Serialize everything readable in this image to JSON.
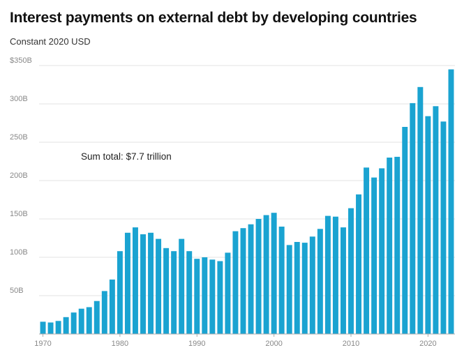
{
  "chart_data": {
    "type": "bar",
    "title": "Interest payments on external debt by developing countries",
    "subtitle": "Constant 2020 USD",
    "annotation": "Sum total: $7.7 trillion",
    "color": "#1aa3d1",
    "grid": true,
    "ylim": [
      0,
      350
    ],
    "y_ticks": [
      {
        "value": 50,
        "label": "50B"
      },
      {
        "value": 100,
        "label": "100B"
      },
      {
        "value": 150,
        "label": "150B"
      },
      {
        "value": 200,
        "label": "200B"
      },
      {
        "value": 250,
        "label": "250B"
      },
      {
        "value": 300,
        "label": "300B"
      },
      {
        "value": 350,
        "label": "$350B"
      }
    ],
    "x_ticks": [
      "1970",
      "1980",
      "1990",
      "2000",
      "2010",
      "2020"
    ],
    "categories": [
      "1970",
      "1971",
      "1972",
      "1973",
      "1974",
      "1975",
      "1976",
      "1977",
      "1978",
      "1979",
      "1980",
      "1981",
      "1982",
      "1983",
      "1984",
      "1985",
      "1986",
      "1987",
      "1988",
      "1989",
      "1990",
      "1991",
      "1992",
      "1993",
      "1994",
      "1995",
      "1996",
      "1997",
      "1998",
      "1999",
      "2000",
      "2001",
      "2002",
      "2003",
      "2004",
      "2005",
      "2006",
      "2007",
      "2008",
      "2009",
      "2010",
      "2011",
      "2012",
      "2013",
      "2014",
      "2015",
      "2016",
      "2017",
      "2018",
      "2019",
      "2020",
      "2021",
      "2022",
      "2023"
    ],
    "values": [
      16,
      15,
      17,
      22,
      28,
      33,
      35,
      43,
      56,
      71,
      108,
      132,
      139,
      130,
      132,
      124,
      112,
      108,
      124,
      108,
      98,
      100,
      97,
      95,
      106,
      134,
      138,
      143,
      150,
      155,
      158,
      140,
      116,
      120,
      119,
      127,
      137,
      154,
      153,
      139,
      164,
      182,
      217,
      204,
      216,
      230,
      231,
      270,
      301,
      322,
      284,
      297,
      277,
      345
    ],
    "unit": "billion USD"
  }
}
